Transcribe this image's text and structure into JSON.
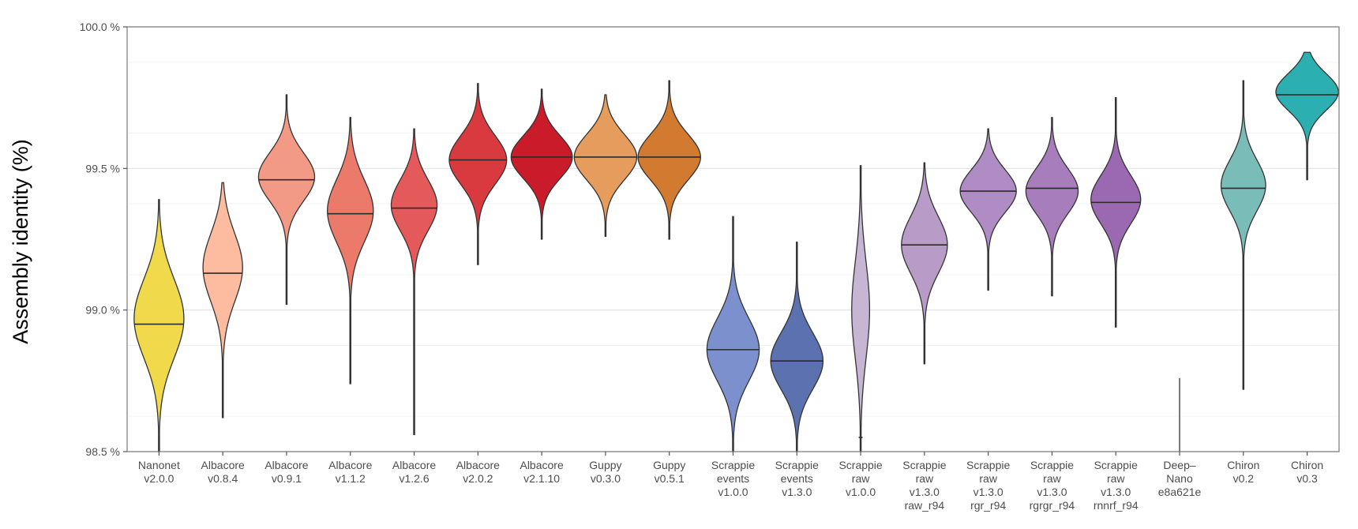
{
  "chart_data": {
    "type": "violin",
    "title": "",
    "xlabel": "",
    "ylabel": "Assembly identity (%)",
    "ylim": [
      98.5,
      100.0
    ],
    "yticks": [
      98.5,
      99.0,
      99.5,
      100.0
    ],
    "ytick_labels": [
      "98.5 %",
      "99.0 %",
      "99.5 %",
      "100.0 %"
    ],
    "grid": true,
    "categories": [
      {
        "lines": [
          "Nanonet",
          "v2.0.0"
        ],
        "color": "#F0DA4B",
        "median": 98.95,
        "min": 98.5,
        "max": 99.39,
        "mode": 98.97,
        "spread": 0.14,
        "maxw": 0.78
      },
      {
        "lines": [
          "Albacore",
          "v0.8.4"
        ],
        "color": "#FDBBA0",
        "median": 99.13,
        "min": 98.62,
        "max": 99.45,
        "mode": 99.15,
        "spread": 0.12,
        "maxw": 0.62
      },
      {
        "lines": [
          "Albacore",
          "v0.9.1"
        ],
        "color": "#F29A85",
        "median": 99.46,
        "min": 99.02,
        "max": 99.76,
        "mode": 99.47,
        "spread": 0.085,
        "maxw": 0.88
      },
      {
        "lines": [
          "Albacore",
          "v1.1.2"
        ],
        "color": "#EC7A6B",
        "median": 99.34,
        "min": 98.74,
        "max": 99.68,
        "mode": 99.35,
        "spread": 0.11,
        "maxw": 0.72
      },
      {
        "lines": [
          "Albacore",
          "v1.2.6"
        ],
        "color": "#E4595A",
        "median": 99.36,
        "min": 98.56,
        "max": 99.64,
        "mode": 99.37,
        "spread": 0.09,
        "maxw": 0.72
      },
      {
        "lines": [
          "Albacore",
          "v2.0.2"
        ],
        "color": "#D93A3F",
        "median": 99.53,
        "min": 99.16,
        "max": 99.8,
        "mode": 99.53,
        "spread": 0.085,
        "maxw": 0.9
      },
      {
        "lines": [
          "Albacore",
          "v2.1.10"
        ],
        "color": "#C91B2A",
        "median": 99.54,
        "min": 99.25,
        "max": 99.78,
        "mode": 99.54,
        "spread": 0.075,
        "maxw": 0.96
      },
      {
        "lines": [
          "Guppy",
          "v0.3.0"
        ],
        "color": "#E59C5C",
        "median": 99.54,
        "min": 99.26,
        "max": 99.76,
        "mode": 99.54,
        "spread": 0.08,
        "maxw": 0.98
      },
      {
        "lines": [
          "Guppy",
          "v0.5.1"
        ],
        "color": "#D27A30",
        "median": 99.54,
        "min": 99.25,
        "max": 99.81,
        "mode": 99.54,
        "spread": 0.08,
        "maxw": 0.98
      },
      {
        "lines": [
          "Scrappie",
          "events",
          "v1.0.0"
        ],
        "color": "#7B90CC",
        "median": 98.86,
        "min": 98.5,
        "max": 99.33,
        "mode": 98.86,
        "spread": 0.11,
        "maxw": 0.82
      },
      {
        "lines": [
          "Scrappie",
          "events",
          "v1.3.0"
        ],
        "color": "#5C72B0",
        "median": 98.82,
        "min": 98.5,
        "max": 99.24,
        "mode": 98.82,
        "spread": 0.1,
        "maxw": 0.82
      },
      {
        "lines": [
          "Scrappie",
          "raw",
          "v1.0.0"
        ],
        "color": "#C7B6D3",
        "median": 98.55,
        "min": 98.5,
        "max": 99.51,
        "mode": 99.0,
        "spread": 0.17,
        "maxw": 0.28
      },
      {
        "lines": [
          "Scrappie",
          "raw",
          "v1.3.0",
          "raw_r94"
        ],
        "color": "#B99BC8",
        "median": 99.23,
        "min": 98.81,
        "max": 99.52,
        "mode": 99.23,
        "spread": 0.1,
        "maxw": 0.72
      },
      {
        "lines": [
          "Scrappie",
          "raw",
          "v1.3.0",
          "rgr_r94"
        ],
        "color": "#B08CC4",
        "median": 99.42,
        "min": 99.07,
        "max": 99.64,
        "mode": 99.42,
        "spread": 0.075,
        "maxw": 0.88
      },
      {
        "lines": [
          "Scrappie",
          "raw",
          "v1.3.0",
          "rgrgr_r94"
        ],
        "color": "#A77DBB",
        "median": 99.43,
        "min": 99.05,
        "max": 99.68,
        "mode": 99.42,
        "spread": 0.08,
        "maxw": 0.82
      },
      {
        "lines": [
          "Scrappie",
          "raw",
          "v1.3.0",
          "rnnrf_r94"
        ],
        "color": "#9B68B2",
        "median": 99.38,
        "min": 98.94,
        "max": 99.75,
        "mode": 99.39,
        "spread": 0.085,
        "maxw": 0.78
      },
      {
        "lines": [
          "Deep–",
          "Nano",
          "e8a621e"
        ],
        "color": "#7F7F7F",
        "median": null,
        "min": 98.5,
        "max": 98.76,
        "mode": null,
        "spread": 0,
        "maxw": 0
      },
      {
        "lines": [
          "Chiron",
          "v0.2"
        ],
        "color": "#79BCB8",
        "median": 99.43,
        "min": 98.72,
        "max": 99.81,
        "mode": 99.44,
        "spread": 0.09,
        "maxw": 0.7
      },
      {
        "lines": [
          "Chiron",
          "v0.3"
        ],
        "color": "#2BAFB0",
        "median": 99.76,
        "min": 99.46,
        "max": 99.91,
        "mode": 99.77,
        "spread": 0.065,
        "maxw": 0.98
      }
    ]
  }
}
